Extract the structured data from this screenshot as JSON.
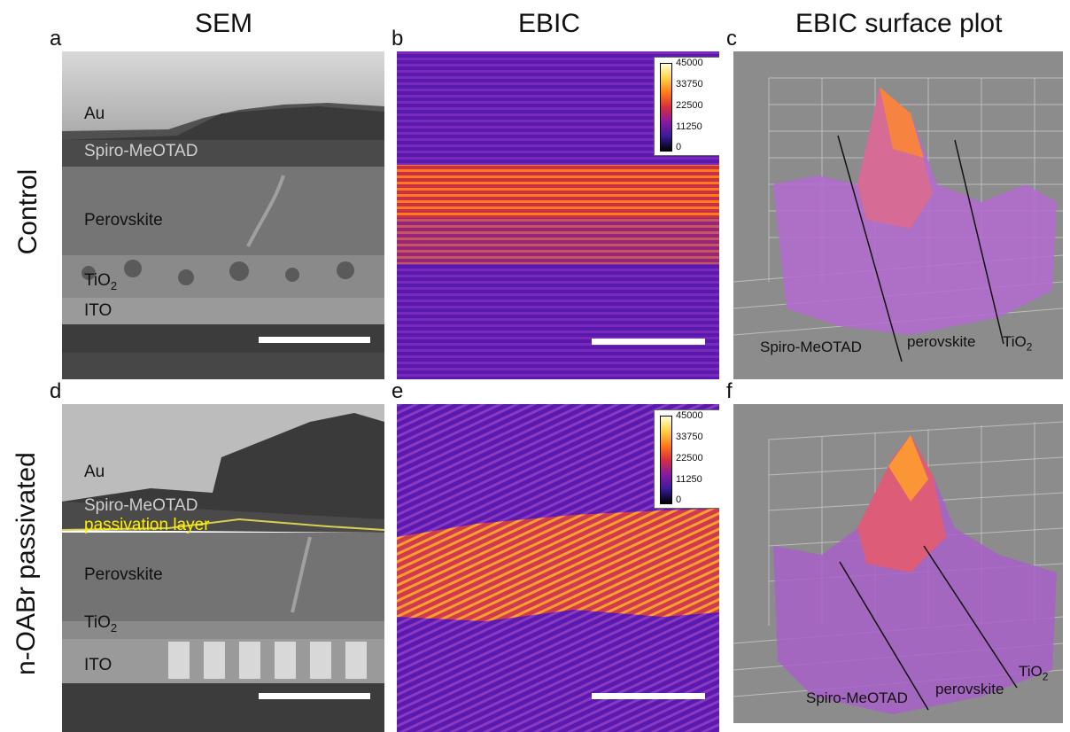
{
  "column_titles": {
    "sem": "SEM",
    "ebic": "EBIC",
    "surface": "EBIC surface plot"
  },
  "row_labels": {
    "control": "Control",
    "passivated": "n-OABr passivated"
  },
  "panel_letters": {
    "a": "a",
    "b": "b",
    "c": "c",
    "d": "d",
    "e": "e",
    "f": "f"
  },
  "sem_control_layers": {
    "au": "Au",
    "spiro": "Spiro-MeOTAD",
    "perovskite": "Perovskite",
    "tio2": "TiO",
    "tio2_sub": "2",
    "ito": "ITO"
  },
  "sem_passivated_layers": {
    "au": "Au",
    "spiro": "Spiro-MeOTAD",
    "passivation": "passivation layer",
    "perovskite": "Perovskite",
    "tio2": "TiO",
    "tio2_sub": "2",
    "ito": "ITO"
  },
  "colorbar_ticks": [
    "45000",
    "33750",
    "22500",
    "11250",
    "0"
  ],
  "surface_labels": {
    "spiro": "Spiro-MeOTAD",
    "perovskite": "perovskite",
    "tio2": "TiO",
    "tio2_sub": "2"
  },
  "colors": {
    "passivation": "#ffee00",
    "ebic_bg": "#5a1ab0",
    "ebic_hot": "#ff7a1a",
    "surface_bg": "#8c8c8c"
  }
}
